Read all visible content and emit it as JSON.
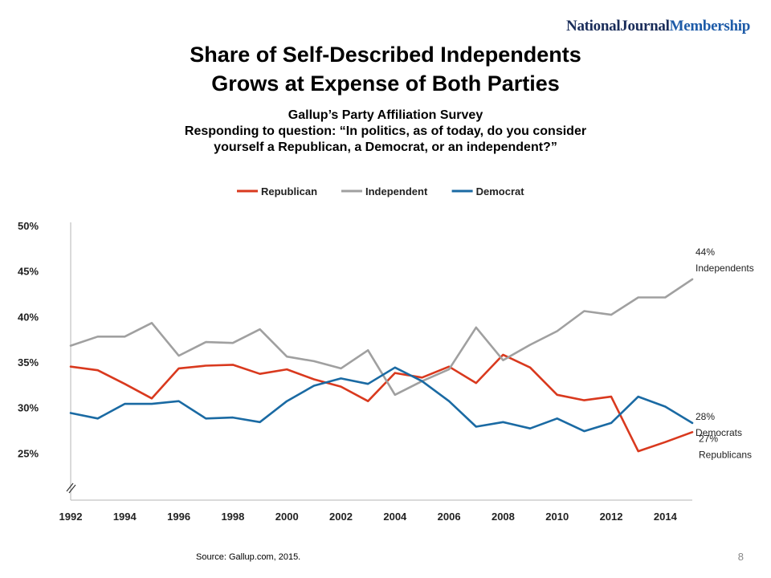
{
  "brand": {
    "part1": "NationalJournal",
    "part2": "Membership"
  },
  "title": {
    "line1": "Share of Self-Described Independents",
    "line2": "Grows at Expense of Both Parties"
  },
  "subtitle": {
    "line1": "Gallup’s Party Affiliation Survey",
    "line2": "Responding to question: “In politics, as of today, do you consider",
    "line3": "yourself a Republican, a Democrat, or an independent?”"
  },
  "source": "Source: Gallup.com, 2015.",
  "page_number": "8",
  "chart_data": {
    "type": "line",
    "x": [
      1992,
      1993,
      1994,
      1995,
      1996,
      1997,
      1998,
      1999,
      2000,
      2001,
      2002,
      2003,
      2004,
      2005,
      2006,
      2007,
      2008,
      2009,
      2010,
      2011,
      2012,
      2013,
      2014,
      2015
    ],
    "x_ticks": [
      "1992",
      "1994",
      "1996",
      "1998",
      "2000",
      "2002",
      "2004",
      "2006",
      "2008",
      "2010",
      "2012",
      "2014"
    ],
    "y_ticks": [
      "25%",
      "30%",
      "35%",
      "40%",
      "45%",
      "50%"
    ],
    "y_tick_values": [
      25,
      30,
      35,
      40,
      45,
      50
    ],
    "ylim": [
      20,
      50
    ],
    "axis_break": true,
    "grid": false,
    "legend_position": "top-center",
    "series": [
      {
        "name": "Republican",
        "color": "#d9391e",
        "values": [
          34.5,
          34.1,
          32.6,
          31.0,
          34.3,
          34.6,
          34.7,
          33.7,
          34.2,
          33.1,
          32.3,
          30.7,
          33.8,
          33.3,
          34.5,
          32.7,
          35.8,
          34.4,
          31.4,
          30.8,
          31.2,
          25.2,
          26.2,
          27.3
        ]
      },
      {
        "name": "Independent",
        "color": "#a0a0a0",
        "values": [
          36.8,
          37.8,
          37.8,
          39.3,
          35.7,
          37.2,
          37.1,
          38.6,
          35.6,
          35.1,
          34.3,
          36.3,
          31.4,
          32.9,
          34.2,
          38.8,
          35.2,
          36.9,
          38.4,
          40.6,
          40.2,
          42.1,
          42.1,
          44.1
        ]
      },
      {
        "name": "Democrat",
        "color": "#1a6aa3",
        "values": [
          29.4,
          28.8,
          30.4,
          30.4,
          30.7,
          28.8,
          28.9,
          28.4,
          30.7,
          32.4,
          33.2,
          32.6,
          34.4,
          32.9,
          30.7,
          27.9,
          28.4,
          27.7,
          28.8,
          27.4,
          28.3,
          31.2,
          30.1,
          28.3
        ]
      }
    ],
    "end_labels": [
      {
        "series": "Independent",
        "value": "44%",
        "label": "Independents"
      },
      {
        "series": "Democrat",
        "value": "28%",
        "label": "Democrats"
      },
      {
        "series": "Republican",
        "value": "27%",
        "label": "Republicans"
      }
    ]
  }
}
